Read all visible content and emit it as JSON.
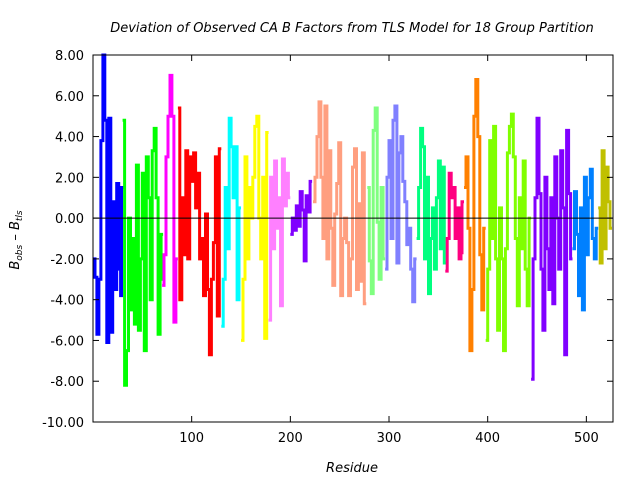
{
  "chart_data": {
    "type": "line",
    "title": "Deviation of Observed CA B Factors from TLS Model for 18 Group Partition",
    "xlabel": "Residue",
    "ylabel": {
      "main1": "B",
      "sub1": "obs",
      "mid": " – B",
      "sub2": "tls"
    },
    "xlim": [
      0,
      527
    ],
    "ylim": [
      -10,
      8
    ],
    "xticks": [
      "100",
      "200",
      "300",
      "400",
      "500"
    ],
    "xtick_values": [
      100,
      200,
      300,
      400,
      500
    ],
    "yticks": [
      "-10.00",
      "-8.00",
      "-6.00",
      "-4.00",
      "-2.00",
      "0.00",
      "2.00",
      "4.00",
      "6.00",
      "8.00"
    ],
    "ytick_values": [
      -10,
      -8,
      -6,
      -4,
      -2,
      0,
      2,
      4,
      6,
      8
    ],
    "grid": false,
    "zero_line": true,
    "series": [
      {
        "color": "#0000ff",
        "points": [
          [
            1,
            -2
          ],
          [
            3,
            -2.9
          ],
          [
            5,
            -5.7
          ],
          [
            7,
            -3
          ],
          [
            9,
            3.8
          ],
          [
            11,
            8
          ],
          [
            13,
            4.8
          ],
          [
            15,
            -6.1
          ],
          [
            17,
            4.9
          ],
          [
            19,
            -5.6
          ],
          [
            21,
            0.8
          ],
          [
            23,
            -3.5
          ],
          [
            25,
            1.7
          ],
          [
            27,
            -2.5
          ],
          [
            29,
            -3.8
          ],
          [
            30,
            1.5
          ]
        ]
      },
      {
        "color": "#00ff00",
        "points": [
          [
            31,
            4.8
          ],
          [
            33,
            -8.2
          ],
          [
            35,
            -6.5
          ],
          [
            37,
            0
          ],
          [
            39,
            -4.5
          ],
          [
            41,
            -1
          ],
          [
            43,
            -5.2
          ],
          [
            45,
            2.6
          ],
          [
            47,
            -5.5
          ],
          [
            49,
            -2
          ],
          [
            51,
            2.2
          ],
          [
            53,
            -6.5
          ],
          [
            55,
            3
          ],
          [
            57,
            1
          ],
          [
            59,
            -4
          ],
          [
            61,
            3.3
          ],
          [
            63,
            4.4
          ],
          [
            65,
            1
          ],
          [
            67,
            -5.7
          ],
          [
            69,
            -3
          ],
          [
            70,
            -0.8
          ]
        ]
      },
      {
        "color": "#ff00ff",
        "points": [
          [
            71,
            -3.3
          ],
          [
            73,
            -1.8
          ],
          [
            75,
            3
          ],
          [
            77,
            5
          ],
          [
            79,
            7
          ],
          [
            81,
            5
          ],
          [
            83,
            -5.1
          ],
          [
            85,
            -2
          ]
        ]
      },
      {
        "color": "#ff0000",
        "points": [
          [
            87,
            5.4
          ],
          [
            89,
            -4
          ],
          [
            91,
            1
          ],
          [
            93,
            -1.8
          ],
          [
            95,
            3.3
          ],
          [
            97,
            -2
          ],
          [
            99,
            3
          ],
          [
            101,
            1.8
          ],
          [
            103,
            3.2
          ],
          [
            105,
            0.5
          ],
          [
            107,
            2.2
          ],
          [
            109,
            -2
          ],
          [
            111,
            -1
          ],
          [
            113,
            -3.8
          ],
          [
            115,
            0.2
          ],
          [
            117,
            -3.5
          ],
          [
            119,
            -6.7
          ],
          [
            121,
            -3
          ],
          [
            123,
            -1.2
          ],
          [
            125,
            3
          ],
          [
            127,
            -4.8
          ],
          [
            129,
            3.4
          ]
        ]
      },
      {
        "color": "#00ffff",
        "points": [
          [
            131,
            -5.3
          ],
          [
            133,
            -3
          ],
          [
            135,
            1.5
          ],
          [
            137,
            -1.5
          ],
          [
            139,
            4.9
          ],
          [
            141,
            3.5
          ],
          [
            143,
            1
          ],
          [
            145,
            3.5
          ],
          [
            147,
            -4
          ],
          [
            149,
            0.5
          ]
        ]
      },
      {
        "color": "#ffff00",
        "points": [
          [
            151,
            -6
          ],
          [
            153,
            -3
          ],
          [
            155,
            3
          ],
          [
            157,
            -2
          ],
          [
            159,
            1.5
          ],
          [
            161,
            0
          ],
          [
            163,
            2
          ],
          [
            165,
            4.5
          ],
          [
            167,
            5
          ],
          [
            169,
            0
          ],
          [
            171,
            -2
          ],
          [
            173,
            2
          ],
          [
            175,
            -5.9
          ],
          [
            177,
            4.2
          ]
        ]
      },
      {
        "color": "#ff80ff",
        "points": [
          [
            179,
            -5
          ],
          [
            181,
            2
          ],
          [
            183,
            -1.5
          ],
          [
            185,
            2.8
          ],
          [
            187,
            -0.5
          ],
          [
            189,
            1
          ],
          [
            191,
            -4.3
          ],
          [
            193,
            2.9
          ],
          [
            195,
            0.6
          ],
          [
            197,
            2.2
          ],
          [
            199,
            1
          ]
        ]
      },
      {
        "color": "#8000ff",
        "points": [
          [
            201,
            -0.8
          ],
          [
            203,
            0
          ],
          [
            205,
            -0.6
          ],
          [
            207,
            0.6
          ],
          [
            209,
            -0.4
          ],
          [
            211,
            1.3
          ],
          [
            213,
            0.4
          ],
          [
            215,
            -2.1
          ],
          [
            217,
            1.1
          ],
          [
            219,
            0.3
          ],
          [
            221,
            1.8
          ]
        ]
      },
      {
        "color": "#ff9f80",
        "points": [
          [
            224,
            0.8
          ],
          [
            226,
            2
          ],
          [
            228,
            4
          ],
          [
            230,
            5.7
          ],
          [
            232,
            2
          ],
          [
            234,
            -1
          ],
          [
            236,
            5.5
          ],
          [
            238,
            -2
          ],
          [
            240,
            3.3
          ],
          [
            242,
            -0.5
          ],
          [
            244,
            -3.3
          ],
          [
            246,
            0.2
          ],
          [
            248,
            1.7
          ],
          [
            250,
            3.7
          ],
          [
            252,
            -3.8
          ],
          [
            254,
            -1
          ],
          [
            256,
            0
          ],
          [
            258,
            -1.2
          ],
          [
            260,
            -3.8
          ],
          [
            262,
            -2
          ],
          [
            264,
            2.5
          ],
          [
            266,
            3.4
          ],
          [
            268,
            -3.5
          ],
          [
            270,
            0.7
          ],
          [
            272,
            -3.1
          ],
          [
            274,
            3.2
          ],
          [
            276,
            -4.2
          ]
        ]
      },
      {
        "color": "#80ff80",
        "points": [
          [
            279,
            1.5
          ],
          [
            281,
            -2.1
          ],
          [
            283,
            -3.7
          ],
          [
            285,
            4.3
          ],
          [
            287,
            5.4
          ],
          [
            289,
            -0.2
          ],
          [
            291,
            -3
          ],
          [
            293,
            1.5
          ],
          [
            295,
            -2
          ]
        ]
      },
      {
        "color": "#8080ff",
        "points": [
          [
            297,
            -2.5
          ],
          [
            299,
            2
          ],
          [
            301,
            3.8
          ],
          [
            303,
            -1
          ],
          [
            305,
            4.8
          ],
          [
            307,
            5.5
          ],
          [
            309,
            -2.2
          ],
          [
            311,
            3.2
          ],
          [
            313,
            4
          ],
          [
            315,
            1.8
          ],
          [
            317,
            0.8
          ],
          [
            319,
            -1.3
          ],
          [
            321,
            -0.5
          ],
          [
            323,
            -2.5
          ],
          [
            325,
            -4.1
          ],
          [
            327,
            -2
          ]
        ]
      },
      {
        "color": "#00ff80",
        "points": [
          [
            329,
            -1
          ],
          [
            331,
            1.5
          ],
          [
            333,
            4.4
          ],
          [
            335,
            3.5
          ],
          [
            337,
            -2
          ],
          [
            339,
            2
          ],
          [
            341,
            -3.7
          ],
          [
            343,
            -1
          ],
          [
            345,
            0.5
          ],
          [
            347,
            -2.5
          ],
          [
            349,
            1
          ],
          [
            351,
            2.8
          ],
          [
            353,
            -1.5
          ],
          [
            355,
            2.5
          ],
          [
            357,
            -2.2
          ]
        ]
      },
      {
        "color": "#ff0080",
        "points": [
          [
            358,
            -2.6
          ],
          [
            360,
            -1
          ],
          [
            362,
            2.2
          ],
          [
            364,
            1
          ],
          [
            366,
            1.5
          ],
          [
            368,
            -1
          ],
          [
            370,
            0.5
          ],
          [
            372,
            -2
          ],
          [
            374,
            -1.7
          ],
          [
            375,
            0.8
          ]
        ]
      },
      {
        "color": "#ff8000",
        "points": [
          [
            377,
            1.5
          ],
          [
            379,
            3
          ],
          [
            381,
            -0.5
          ],
          [
            383,
            -6.5
          ],
          [
            385,
            -3.5
          ],
          [
            387,
            5
          ],
          [
            389,
            6.8
          ],
          [
            391,
            4
          ],
          [
            393,
            -1.8
          ],
          [
            395,
            -4.5
          ],
          [
            397,
            -0.5
          ]
        ]
      },
      {
        "color": "#80ff00",
        "points": [
          [
            399,
            -6
          ],
          [
            401,
            -2.5
          ],
          [
            403,
            3.8
          ],
          [
            405,
            -1
          ],
          [
            407,
            4.5
          ],
          [
            409,
            -2
          ],
          [
            411,
            -5.5
          ],
          [
            413,
            0.5
          ],
          [
            415,
            -2
          ],
          [
            417,
            -6.5
          ],
          [
            419,
            -1.5
          ],
          [
            421,
            3.2
          ],
          [
            423,
            4.5
          ],
          [
            425,
            5.1
          ],
          [
            427,
            3
          ],
          [
            429,
            -1
          ],
          [
            431,
            -4.3
          ],
          [
            433,
            1
          ],
          [
            435,
            -1.5
          ],
          [
            437,
            2.8
          ],
          [
            439,
            -2.5
          ],
          [
            441,
            -4.3
          ],
          [
            443,
            0
          ]
        ]
      },
      {
        "color": "#8000ff",
        "points": [
          [
            445,
            -7.9
          ],
          [
            447,
            -2
          ],
          [
            449,
            1
          ],
          [
            451,
            4.9
          ],
          [
            453,
            1.2
          ],
          [
            455,
            -2.5
          ],
          [
            457,
            -5.5
          ],
          [
            459,
            2
          ],
          [
            461,
            -1.5
          ],
          [
            463,
            -3.5
          ],
          [
            465,
            1
          ],
          [
            467,
            -4.2
          ],
          [
            469,
            3
          ],
          [
            471,
            0
          ],
          [
            473,
            -2.5
          ],
          [
            475,
            3.3
          ],
          [
            477,
            0.5
          ],
          [
            479,
            -6.7
          ],
          [
            481,
            4.3
          ],
          [
            483,
            1.2
          ],
          [
            485,
            -2
          ]
        ]
      },
      {
        "color": "#0080ff",
        "points": [
          [
            487,
            -1.5
          ],
          [
            489,
            1.3
          ],
          [
            491,
            -0.8
          ],
          [
            493,
            -3.8
          ],
          [
            495,
            0.5
          ],
          [
            497,
            -4.5
          ],
          [
            499,
            2
          ],
          [
            501,
            -1.8
          ],
          [
            503,
            1
          ],
          [
            505,
            2.4
          ],
          [
            507,
            -1
          ],
          [
            509,
            -2
          ],
          [
            511,
            -0.5
          ]
        ]
      },
      {
        "color": "#c0c000",
        "points": [
          [
            513,
            0.5
          ],
          [
            515,
            -2.2
          ],
          [
            517,
            3.3
          ],
          [
            519,
            -1.5
          ],
          [
            521,
            2.5
          ],
          [
            523,
            0.8
          ],
          [
            525,
            -0.5
          ]
        ]
      }
    ]
  }
}
